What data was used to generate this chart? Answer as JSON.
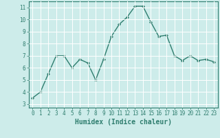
{
  "x": [
    0,
    1,
    2,
    3,
    4,
    5,
    6,
    7,
    8,
    9,
    10,
    11,
    12,
    13,
    14,
    15,
    16,
    17,
    18,
    19,
    20,
    21,
    22,
    23
  ],
  "y": [
    3.5,
    4.0,
    5.5,
    7.0,
    7.0,
    6.0,
    6.7,
    6.4,
    5.0,
    6.7,
    8.6,
    9.6,
    10.2,
    11.1,
    11.1,
    9.8,
    8.6,
    8.7,
    7.0,
    6.6,
    7.0,
    6.6,
    6.7,
    6.5
  ],
  "line_color": "#2e7d6e",
  "marker": "D",
  "marker_size": 2,
  "line_width": 1.0,
  "bg_color": "#cdecea",
  "grid_color": "#b0d8d4",
  "xlabel": "Humidex (Indice chaleur)",
  "xlabel_fontsize": 7,
  "ylim": [
    2.7,
    11.5
  ],
  "xlim": [
    -0.5,
    23.5
  ],
  "yticks": [
    3,
    4,
    5,
    6,
    7,
    8,
    9,
    10,
    11
  ],
  "xticks": [
    0,
    1,
    2,
    3,
    4,
    5,
    6,
    7,
    8,
    9,
    10,
    11,
    12,
    13,
    14,
    15,
    16,
    17,
    18,
    19,
    20,
    21,
    22,
    23
  ],
  "tick_color": "#2e7d6e",
  "tick_fontsize": 5.5,
  "axis_color": "#2e7d6e"
}
